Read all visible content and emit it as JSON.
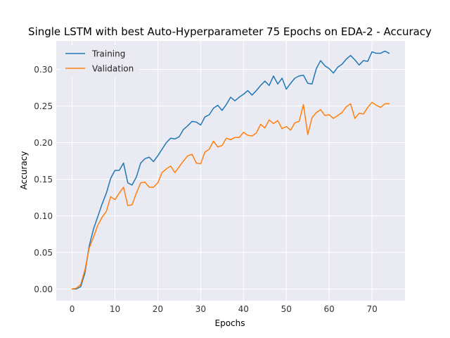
{
  "chart_data": {
    "type": "line",
    "title": "Single LSTM with best Auto-Hyperparameter 75 Epochs on EDA-2 - Accuracy",
    "xlabel": "Epochs",
    "ylabel": "Accuracy",
    "xlim": [
      -3.7,
      77.7
    ],
    "ylim": [
      -0.016,
      0.339
    ],
    "xticks": [
      0,
      10,
      20,
      30,
      40,
      50,
      60,
      70
    ],
    "yticks": [
      0.0,
      0.05,
      0.1,
      0.15,
      0.2,
      0.25,
      0.3
    ],
    "ytick_labels": [
      "0.00",
      "0.05",
      "0.10",
      "0.15",
      "0.20",
      "0.25",
      "0.30"
    ],
    "grid": true,
    "legend_position": "upper-left",
    "background": "#eaeaf2",
    "series": [
      {
        "name": "Training",
        "color": "#1f77b4",
        "values": [
          0.0,
          0.0,
          0.003,
          0.022,
          0.059,
          0.082,
          0.099,
          0.116,
          0.131,
          0.151,
          0.162,
          0.162,
          0.172,
          0.145,
          0.142,
          0.153,
          0.172,
          0.178,
          0.18,
          0.174,
          0.182,
          0.191,
          0.2,
          0.206,
          0.205,
          0.208,
          0.218,
          0.223,
          0.229,
          0.228,
          0.224,
          0.235,
          0.238,
          0.247,
          0.251,
          0.244,
          0.252,
          0.262,
          0.257,
          0.262,
          0.266,
          0.271,
          0.265,
          0.271,
          0.278,
          0.284,
          0.278,
          0.291,
          0.28,
          0.288,
          0.273,
          0.281,
          0.288,
          0.291,
          0.292,
          0.281,
          0.28,
          0.301,
          0.312,
          0.305,
          0.301,
          0.295,
          0.303,
          0.307,
          0.314,
          0.319,
          0.313,
          0.306,
          0.312,
          0.311,
          0.324,
          0.322,
          0.322,
          0.325,
          0.322
        ]
      },
      {
        "name": "Validation",
        "color": "#ff7f0e",
        "values": [
          0.0,
          0.001,
          0.006,
          0.026,
          0.056,
          0.071,
          0.087,
          0.098,
          0.106,
          0.126,
          0.122,
          0.131,
          0.139,
          0.114,
          0.115,
          0.131,
          0.145,
          0.146,
          0.139,
          0.139,
          0.145,
          0.159,
          0.164,
          0.168,
          0.159,
          0.167,
          0.175,
          0.182,
          0.184,
          0.172,
          0.171,
          0.187,
          0.191,
          0.202,
          0.194,
          0.196,
          0.206,
          0.204,
          0.207,
          0.207,
          0.214,
          0.21,
          0.209,
          0.213,
          0.225,
          0.22,
          0.231,
          0.226,
          0.23,
          0.219,
          0.222,
          0.217,
          0.227,
          0.229,
          0.252,
          0.211,
          0.234,
          0.241,
          0.245,
          0.237,
          0.238,
          0.233,
          0.237,
          0.241,
          0.249,
          0.253,
          0.233,
          0.24,
          0.239,
          0.248,
          0.255,
          0.251,
          0.248,
          0.253,
          0.253
        ]
      }
    ]
  }
}
